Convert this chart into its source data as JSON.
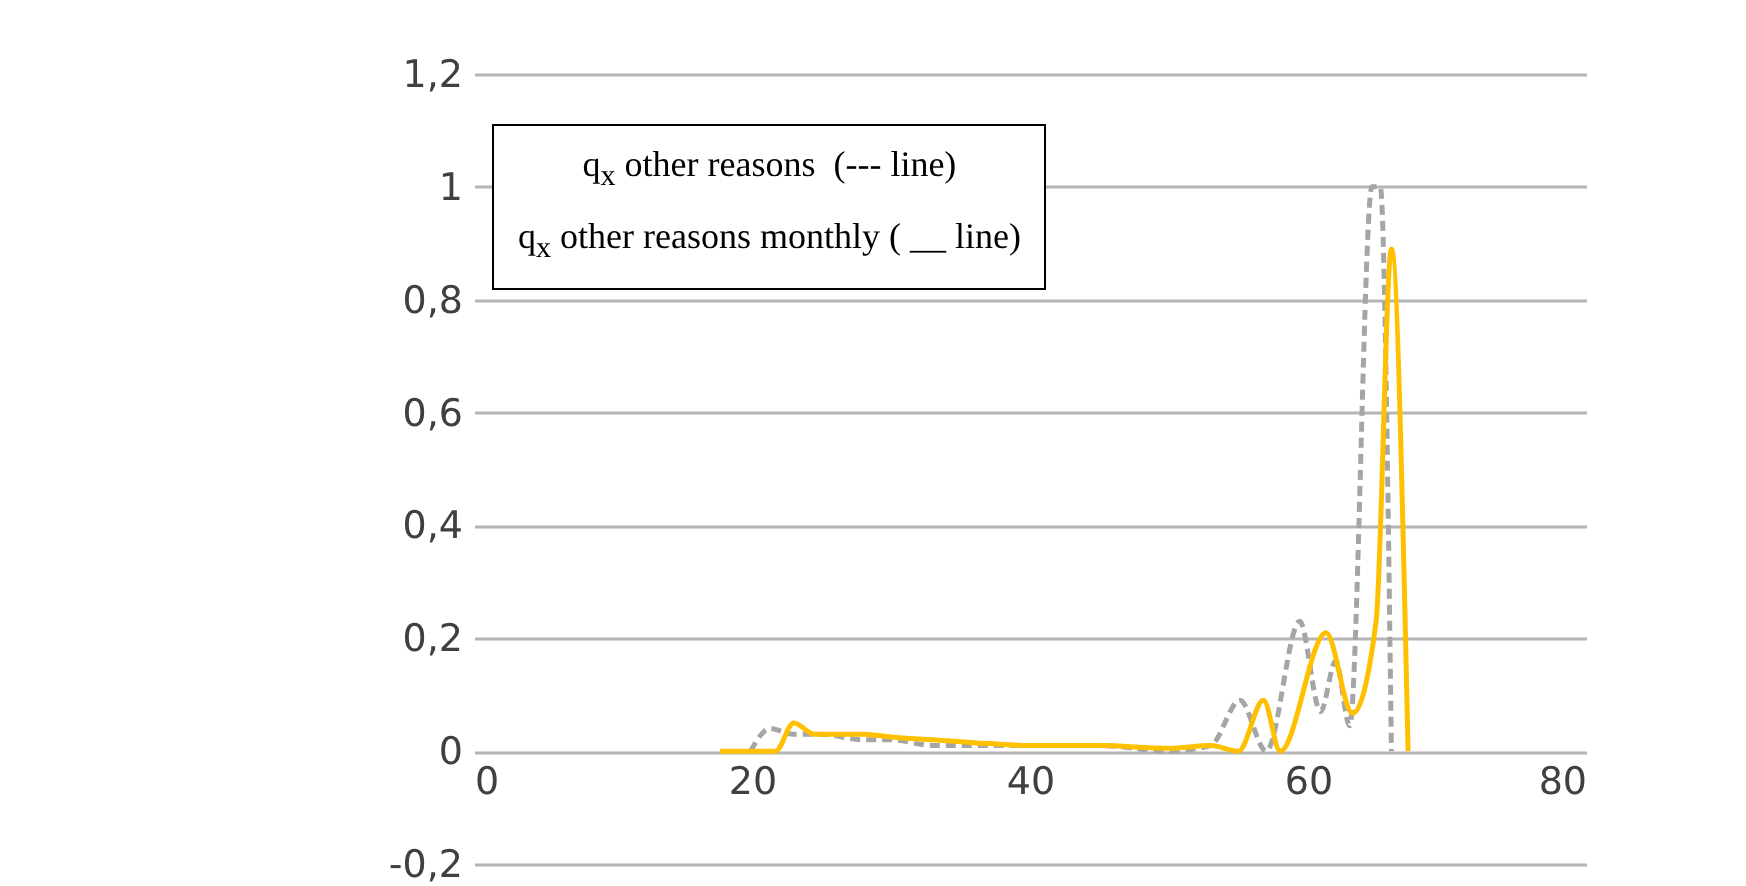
{
  "chart_data": {
    "type": "line",
    "annotations": [
      "q$_{x}$ other reasons  (--- line)",
      "q$_{x}$ other reasons monthly ( __ line)"
    ],
    "xlim": [
      0,
      80
    ],
    "xticks": [
      0,
      20,
      40,
      60,
      80
    ],
    "ylim": [
      -0.2,
      1.2
    ],
    "yticks": [
      {
        "value": -0.2,
        "label": "-0,2"
      },
      0,
      {
        "value": 0.2,
        "label": "0,2"
      },
      {
        "value": 0.4,
        "label": "0,4"
      },
      {
        "value": 0.6,
        "label": "0,6"
      },
      {
        "value": 0.8,
        "label": "0,8"
      },
      1,
      {
        "value": 1.2,
        "label": "1,2"
      }
    ],
    "grid": "y",
    "series": [
      {
        "color": "#a5a5a5",
        "line_style": "dashed",
        "x": [
          19.9,
          21.3,
          23,
          25,
          28,
          30,
          33,
          36,
          40,
          45,
          50,
          53,
          55.1,
          57,
          59.4,
          60.9,
          62,
          63,
          64.6,
          65.2,
          66
        ],
        "values": [
          0,
          0.04,
          0.03,
          0.03,
          0.02,
          0.02,
          0.01,
          0.01,
          0.01,
          0.01,
          0,
          0.01,
          0.09,
          0,
          0.23,
          0.07,
          0.16,
          0.045,
          1.0,
          1.0,
          0
        ]
      },
      {
        "color": "#ffc000",
        "line_style": "solid",
        "x": [
          17.7,
          21.7,
          23,
          24.5,
          26,
          28,
          30,
          33,
          36,
          40,
          45,
          50,
          53,
          55,
          56.8,
          58,
          61.3,
          63.2,
          64.9,
          66,
          67.2
        ],
        "values": [
          0,
          0,
          0.05,
          0.03,
          0.03,
          0.03,
          0.025,
          0.02,
          0.015,
          0.01,
          0.01,
          0.005,
          0.01,
          0,
          0.09,
          0,
          0.21,
          0.067,
          0.23,
          0.89,
          0
        ]
      }
    ]
  }
}
